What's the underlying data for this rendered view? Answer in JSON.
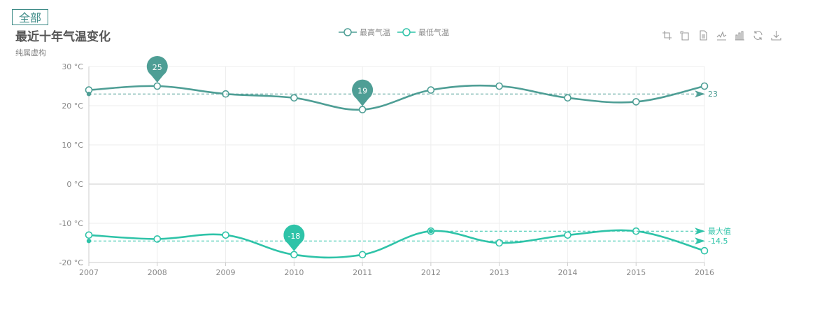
{
  "toolbar": {
    "all_label": "全部"
  },
  "colors": {
    "max_series": "#4e9e95",
    "min_series": "#2ec3a8",
    "grid": "#eeeeee",
    "axis": "#cccccc",
    "text": "#888888",
    "button_border": "#3c8a86"
  },
  "toolbox": [
    "data-zoom-icon",
    "zoom-reset-icon",
    "data-view-icon",
    "line-chart-icon",
    "bar-chart-icon",
    "restore-icon",
    "download-icon"
  ],
  "chart_data": {
    "type": "line",
    "title": "最近十年气温变化",
    "subtitle": "纯属虚构",
    "categories": [
      "2007",
      "2008",
      "2009",
      "2010",
      "2011",
      "2012",
      "2013",
      "2014",
      "2015",
      "2016"
    ],
    "y_unit": " °C",
    "ylim": [
      -20,
      30
    ],
    "yticks": [
      30,
      20,
      10,
      0,
      -10,
      -20
    ],
    "ytick_labels": [
      "30 °C",
      "20 °C",
      "10 °C",
      "0 °C",
      "-10 °C",
      "-20 °C"
    ],
    "smooth": true,
    "legend_position": "top-center",
    "series": [
      {
        "name": "最高气温",
        "values": [
          24,
          25,
          23,
          22,
          19,
          24,
          25,
          22,
          21,
          25
        ],
        "mark_points": [
          {
            "index": 1,
            "label": "25"
          },
          {
            "index": 4,
            "label": "19"
          }
        ],
        "average_line": {
          "value": 23,
          "label": "23"
        }
      },
      {
        "name": "最低气温",
        "values": [
          -13,
          -14,
          -13,
          -18,
          -18,
          -12,
          -15,
          -13,
          -12,
          -17
        ],
        "mark_points": [
          {
            "index": 3,
            "label": "-18"
          }
        ],
        "max_line": {
          "start_index": 5,
          "value": -12,
          "label": "最大值"
        },
        "average_line": {
          "value": -14.5,
          "label": "-14.5"
        }
      }
    ]
  }
}
